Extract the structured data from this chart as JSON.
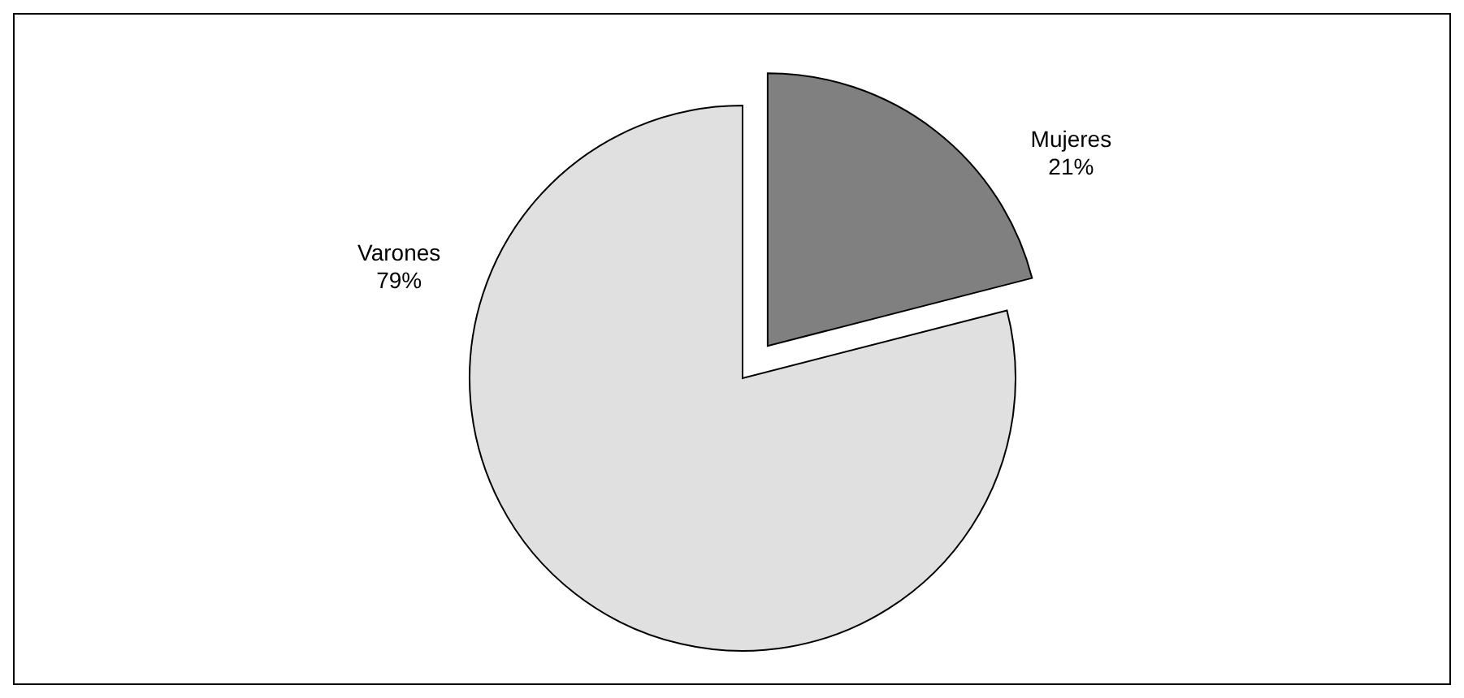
{
  "chart_data": {
    "type": "pie",
    "categories": [
      "Mujeres",
      "Varones"
    ],
    "values": [
      21,
      79
    ],
    "colors": [
      "#808080",
      "#e0e0e0"
    ],
    "value_labels": [
      "21%",
      "79%"
    ]
  }
}
